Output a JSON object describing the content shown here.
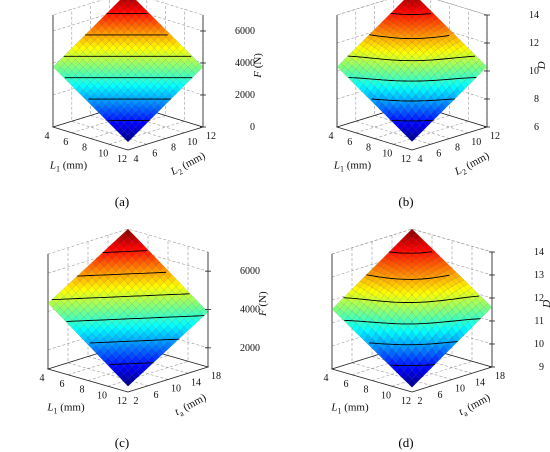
{
  "figure": {
    "panels": [
      {
        "label": "(a)"
      },
      {
        "label": "(b)"
      },
      {
        "label": "(c)"
      },
      {
        "label": "(d)"
      }
    ]
  },
  "chart_data": [
    {
      "type": "surface",
      "panel": "(a)",
      "x": {
        "label": "L1 (mm)",
        "sym": "L",
        "sub": "1",
        "unit": " (mm)",
        "ticks": [
          "4",
          "6",
          "8",
          "10",
          "12"
        ],
        "range": [
          4,
          12
        ]
      },
      "y": {
        "label": "L2 (mm)",
        "sym": "L",
        "sub": "2",
        "unit": " (mm)",
        "ticks": [
          "4",
          "6",
          "8",
          "10",
          "12"
        ],
        "range": [
          4,
          12
        ]
      },
      "z": {
        "label": "F (N)",
        "sym": "F",
        "unit": " (N)",
        "ticks": [
          "0",
          "2000",
          "4000",
          "6000"
        ],
        "range": [
          0,
          7000
        ]
      },
      "surface": {
        "min": 500,
        "max": 7000,
        "x_coef": 0.5,
        "y_coef": 0.5,
        "curv": 0
      }
    },
    {
      "type": "surface",
      "panel": "(b)",
      "x": {
        "label": "L1 (mm)",
        "sym": "L",
        "sub": "1",
        "unit": " (mm)",
        "ticks": [
          "4",
          "6",
          "8",
          "10",
          "12"
        ],
        "range": [
          4,
          12
        ]
      },
      "y": {
        "label": "L2 (mm)",
        "sym": "L",
        "sub": "2",
        "unit": " (mm)",
        "ticks": [
          "4",
          "6",
          "8",
          "10",
          "12"
        ],
        "range": [
          4,
          12
        ]
      },
      "z": {
        "label": "D",
        "sym": "D",
        "unit": "",
        "ticks": [
          "6",
          "8",
          "10",
          "12",
          "14"
        ],
        "range": [
          6,
          14
        ]
      },
      "surface": {
        "min": 6.6,
        "max": 14,
        "x_coef": 0.5,
        "y_coef": 0.5,
        "curv": 0.5
      }
    },
    {
      "type": "surface",
      "panel": "(c)",
      "x": {
        "label": "L1 (mm)",
        "sym": "L",
        "sub": "1",
        "unit": " (mm)",
        "ticks": [
          "4",
          "6",
          "8",
          "10",
          "12"
        ],
        "range": [
          4,
          12
        ]
      },
      "y": {
        "label": "ta (mm)",
        "sym": "t",
        "sub": "a",
        "unit": " (mm)",
        "ticks": [
          "2",
          "6",
          "10",
          "14",
          "18"
        ],
        "range": [
          2,
          18
        ]
      },
      "z": {
        "label": "F (N)",
        "sym": "F",
        "unit": " (N)",
        "ticks": [
          "2000",
          "4000",
          "6000"
        ],
        "range": [
          1000,
          7000
        ]
      },
      "surface": {
        "min": 1300,
        "max": 7000,
        "x_coef": 0.55,
        "y_coef": 0.45,
        "curv": 0
      }
    },
    {
      "type": "surface",
      "panel": "(d)",
      "x": {
        "label": "L1 (mm)",
        "sym": "L",
        "sub": "1",
        "unit": " (mm)",
        "ticks": [
          "4",
          "6",
          "8",
          "10",
          "12"
        ],
        "range": [
          4,
          12
        ]
      },
      "y": {
        "label": "ta (mm)",
        "sym": "t",
        "sub": "a",
        "unit": " (mm)",
        "ticks": [
          "2",
          "6",
          "10",
          "14",
          "18"
        ],
        "range": [
          2,
          18
        ]
      },
      "z": {
        "label": "D",
        "sym": "D",
        "unit": "",
        "ticks": [
          "9",
          "10",
          "11",
          "12",
          "13",
          "14"
        ],
        "range": [
          9,
          14
        ]
      },
      "surface": {
        "min": 9.2,
        "max": 14,
        "x_coef": 0.5,
        "y_coef": 0.5,
        "curv": 0.6
      }
    }
  ]
}
